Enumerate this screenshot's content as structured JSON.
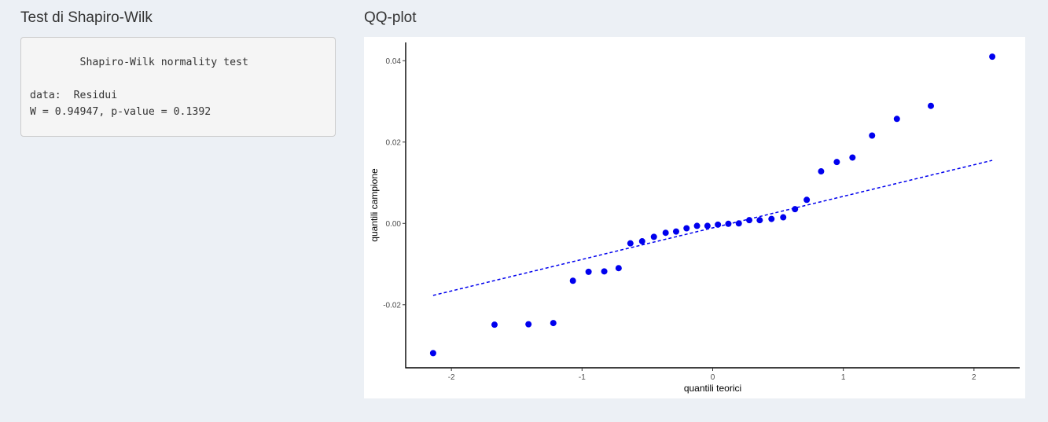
{
  "left_panel": {
    "title": "Test di Shapiro-Wilk",
    "output_lines": [
      "",
      "\tShapiro-Wilk normality test",
      "",
      "data:  Residui",
      "W = 0.94947, p-value = 0.1392"
    ]
  },
  "right_panel": {
    "title": "QQ-plot"
  },
  "chart_data": {
    "type": "scatter",
    "title": "",
    "xlabel": "quantili teorici",
    "ylabel": "quantili campione",
    "xlim": [
      -2.35,
      2.35
    ],
    "ylim": [
      -0.0355,
      0.0445
    ],
    "x_ticks": [
      -2,
      -1,
      0,
      1,
      2
    ],
    "x_tick_labels": [
      "-2",
      "-1",
      "0",
      "1",
      "2"
    ],
    "y_ticks": [
      -0.02,
      0.0,
      0.02,
      0.04
    ],
    "y_tick_labels": [
      "-0.02",
      "0.00",
      "0.02",
      "0.04"
    ],
    "grid": false,
    "point_color": "#0000ee",
    "points": [
      {
        "x": -2.14,
        "y": -0.0319
      },
      {
        "x": -1.67,
        "y": -0.0249
      },
      {
        "x": -1.41,
        "y": -0.0248
      },
      {
        "x": -1.22,
        "y": -0.0245
      },
      {
        "x": -1.07,
        "y": -0.0141
      },
      {
        "x": -0.95,
        "y": -0.0119
      },
      {
        "x": -0.83,
        "y": -0.0118
      },
      {
        "x": -0.72,
        "y": -0.011
      },
      {
        "x": -0.63,
        "y": -0.0049
      },
      {
        "x": -0.54,
        "y": -0.0044
      },
      {
        "x": -0.45,
        "y": -0.0033
      },
      {
        "x": -0.36,
        "y": -0.0023
      },
      {
        "x": -0.28,
        "y": -0.002
      },
      {
        "x": -0.2,
        "y": -0.0012
      },
      {
        "x": -0.12,
        "y": -0.0006
      },
      {
        "x": -0.04,
        "y": -0.0006
      },
      {
        "x": 0.04,
        "y": -0.0003
      },
      {
        "x": 0.12,
        "y": -0.0001
      },
      {
        "x": 0.2,
        "y": 0.0
      },
      {
        "x": 0.28,
        "y": 0.0008
      },
      {
        "x": 0.36,
        "y": 0.0008
      },
      {
        "x": 0.45,
        "y": 0.0011
      },
      {
        "x": 0.54,
        "y": 0.0015
      },
      {
        "x": 0.63,
        "y": 0.0035
      },
      {
        "x": 0.72,
        "y": 0.0058
      },
      {
        "x": 0.83,
        "y": 0.0128
      },
      {
        "x": 0.95,
        "y": 0.0151
      },
      {
        "x": 1.07,
        "y": 0.0162
      },
      {
        "x": 1.22,
        "y": 0.0216
      },
      {
        "x": 1.41,
        "y": 0.0257
      },
      {
        "x": 1.67,
        "y": 0.0289
      },
      {
        "x": 2.14,
        "y": 0.041
      }
    ],
    "reference_line": {
      "style": "dashed",
      "color": "#0000ee",
      "x": [
        -2.14,
        2.14
      ],
      "y": [
        -0.0177,
        0.0155
      ]
    }
  }
}
